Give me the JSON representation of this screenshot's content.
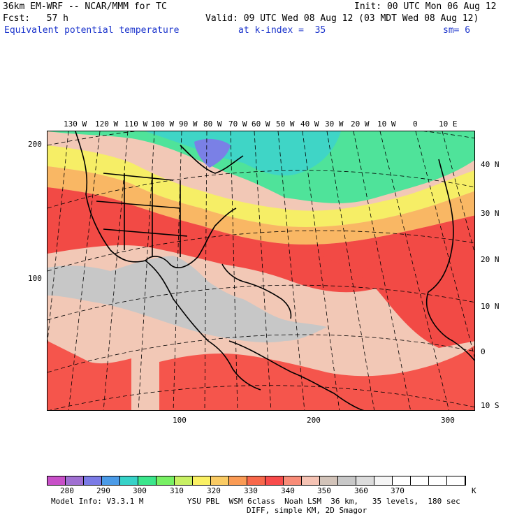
{
  "header": {
    "model": "36km EM-WRF -- NCAR/MMM for TC",
    "init": "Init: 00 UTC Mon 06 Aug 12",
    "fcst": "Fcst:   57 h",
    "valid": "Valid: 09 UTC Wed 08 Aug 12 (03 MDT Wed 08 Aug 12)",
    "field": "Equivalent potential temperature",
    "level": "at k-index =  35",
    "smooth": "sm= 6"
  },
  "map": {
    "top_lon_labels": [
      "130 W",
      "120 W",
      "110 W",
      "100 W",
      "90 W",
      "80 W",
      "70 W",
      "60 W",
      "50 W",
      "40 W",
      "30 W",
      "20 W",
      "10 W",
      "0",
      "10 E"
    ],
    "right_lat_labels": [
      "40 N",
      "30 N",
      "20 N",
      "10 N",
      "0",
      "10 S"
    ],
    "left_grid_labels": [
      "200",
      "100"
    ],
    "bottom_grid_labels": [
      "100",
      "200",
      "300"
    ]
  },
  "colorbar": {
    "colors": [
      "#c850c8",
      "#a070d2",
      "#7b7be6",
      "#4b9be8",
      "#37d2c8",
      "#3ce68c",
      "#78f064",
      "#c8f064",
      "#faf064",
      "#facb64",
      "#fa9b55",
      "#f8684b",
      "#f84b4b",
      "#f88c78",
      "#f5c3b4",
      "#d2c3b9",
      "#c8c8c8",
      "#dcdcdc",
      "#f5f5f5",
      "#ffffff",
      "#ffffff",
      "#ffffff",
      "#ffffff"
    ],
    "labels": [
      "280",
      "290",
      "300",
      "310",
      "320",
      "330",
      "340",
      "350",
      "360",
      "370"
    ],
    "unit": "K"
  },
  "footer": {
    "line1_left": "Model Info: V3.3.1 M",
    "line1_right": "YSU PBL  WSM 6class  Noah LSM  36 km,   35 levels,  180 sec",
    "line2": "DIFF, simple KM, 2D Smagor"
  }
}
